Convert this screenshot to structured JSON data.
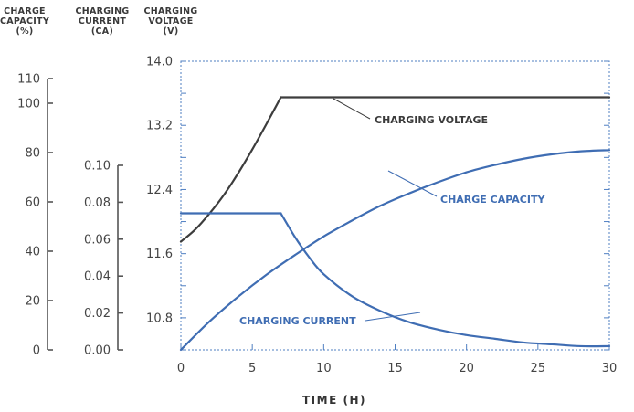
{
  "chart_data": {
    "type": "line",
    "x_axis": {
      "label": "TIME (H)",
      "range": [
        0,
        30
      ],
      "ticks": [
        0,
        5,
        10,
        15,
        20,
        25,
        30
      ],
      "tick_labels": [
        "0",
        "5",
        "10",
        "15",
        "20",
        "25",
        "30"
      ]
    },
    "y_axes": [
      {
        "id": "capacity",
        "header": [
          "CHARGE",
          "CAPACITY",
          "(%)"
        ],
        "range": [
          0,
          110
        ],
        "ticks": [
          0,
          20,
          40,
          60,
          80,
          100,
          110
        ],
        "tick_labels": [
          "0",
          "20",
          "40",
          "60",
          "80",
          "100",
          "110"
        ]
      },
      {
        "id": "current",
        "header": [
          "CHARGING",
          "CURRENT",
          "(CA)"
        ],
        "range": [
          0,
          0.1
        ],
        "ticks": [
          0,
          0.02,
          0.04,
          0.06,
          0.08,
          0.1
        ],
        "tick_labels": [
          "0.00",
          "0.02",
          "0.04",
          "0.06",
          "0.08",
          "0.10"
        ]
      },
      {
        "id": "voltage",
        "header": [
          "CHARGING",
          "VOLTAGE",
          "(V)"
        ],
        "range": [
          10.4,
          14.0
        ],
        "ticks": [
          10.8,
          11.6,
          12.4,
          13.2,
          14.0
        ],
        "tick_labels": [
          "10.8",
          "11.6",
          "12.4",
          "13.2",
          "14.0"
        ]
      }
    ],
    "series": [
      {
        "name": "CHARGING VOLTAGE",
        "axis": "voltage",
        "color": "#3d3d3d",
        "x": [
          0,
          1,
          2,
          3,
          4,
          5,
          6,
          7,
          10,
          15,
          20,
          25,
          30
        ],
        "y": [
          11.75,
          11.9,
          12.1,
          12.33,
          12.6,
          12.9,
          13.22,
          13.55,
          13.55,
          13.55,
          13.55,
          13.55,
          13.55
        ]
      },
      {
        "name": "CHARGE CAPACITY",
        "axis": "capacity",
        "color": "#3f6db3",
        "x": [
          0,
          2,
          4,
          6,
          8,
          10,
          12,
          14,
          16,
          18,
          20,
          22,
          24,
          26,
          28,
          30
        ],
        "y": [
          0,
          11.5,
          21.5,
          30.5,
          38.5,
          46,
          52.5,
          58.5,
          63.5,
          68,
          72,
          75,
          77.5,
          79.3,
          80.5,
          81
        ]
      },
      {
        "name": "CHARGING CURRENT",
        "axis": "current",
        "color": "#3f6db3",
        "x": [
          0,
          7,
          8,
          9,
          10,
          12,
          14,
          16,
          18,
          20,
          22,
          24,
          26,
          28,
          30
        ],
        "y": [
          0.074,
          0.074,
          0.061,
          0.05,
          0.041,
          0.029,
          0.021,
          0.015,
          0.011,
          0.008,
          0.006,
          0.004,
          0.003,
          0.002,
          0.002
        ]
      }
    ],
    "grid": "dotted border with tick marks",
    "annotations": [
      {
        "text": "CHARGING VOLTAGE",
        "series": "CHARGING VOLTAGE"
      },
      {
        "text": "CHARGE CAPACITY",
        "series": "CHARGE CAPACITY"
      },
      {
        "text": "CHARGING CURRENT",
        "series": "CHARGING CURRENT"
      }
    ]
  }
}
